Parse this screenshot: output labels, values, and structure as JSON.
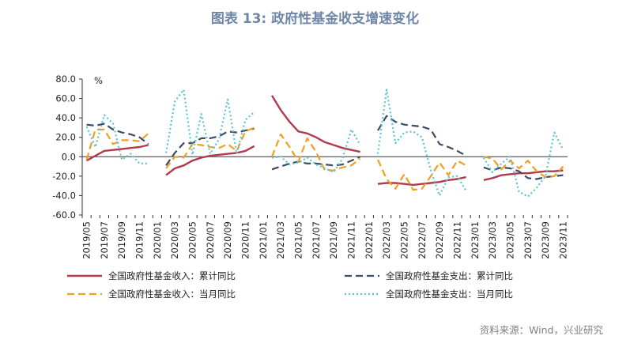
{
  "title": "图表 13: 政府性基金收支增速变化",
  "source": "资料来源：Wind，兴业研究",
  "chart_data": {
    "type": "line",
    "y_unit": "%",
    "ylim": [
      -60,
      80
    ],
    "yticks": [
      "80.0",
      "60.0",
      "40.0",
      "20.0",
      "0.0",
      "-20.0",
      "-40.0",
      "-60.0"
    ],
    "x": [
      "2019/05",
      "2019/06",
      "2019/07",
      "2019/08",
      "2019/09",
      "2019/10",
      "2019/11",
      "2019/12",
      "2020/01",
      "2020/02",
      "2020/03",
      "2020/04",
      "2020/05",
      "2020/06",
      "2020/07",
      "2020/08",
      "2020/09",
      "2020/10",
      "2020/11",
      "2020/12",
      "2021/01",
      "2021/02",
      "2021/03",
      "2021/04",
      "2021/05",
      "2021/06",
      "2021/07",
      "2021/08",
      "2021/09",
      "2021/10",
      "2021/11",
      "2021/12",
      "2022/01",
      "2022/02",
      "2022/03",
      "2022/04",
      "2022/05",
      "2022/06",
      "2022/07",
      "2022/08",
      "2022/09",
      "2022/10",
      "2022/11",
      "2022/12",
      "2023/01",
      "2023/02",
      "2023/03",
      "2023/04",
      "2023/05",
      "2023/06",
      "2023/07",
      "2023/08",
      "2023/09",
      "2023/10",
      "2023/11"
    ],
    "xtick_labels": [
      "2019/05",
      "2019/07",
      "2019/09",
      "2019/11",
      "2020/01",
      "2020/03",
      "2020/05",
      "2020/07",
      "2020/09",
      "2020/11",
      "2021/01",
      "2021/03",
      "2021/05",
      "2021/07",
      "2021/09",
      "2021/11",
      "2022/01",
      "2022/03",
      "2022/05",
      "2022/07",
      "2022/09",
      "2022/11",
      "2023/01",
      "2023/03",
      "2023/05",
      "2023/07",
      "2023/09",
      "2023/11"
    ],
    "grid": false,
    "legend_position": "bottom",
    "series": [
      {
        "name": "全国政府性基金收入：累计同比",
        "color": "#b23a4f",
        "style": "solid",
        "values": [
          -4,
          1,
          6,
          7,
          8,
          9,
          10,
          12,
          null,
          -19,
          -12,
          -9,
          -4,
          -1,
          1,
          2,
          3,
          4,
          6,
          11,
          null,
          63,
          48,
          36,
          26,
          24,
          20,
          15,
          12,
          9,
          7,
          5,
          null,
          -28,
          -27,
          -27,
          -28,
          -29,
          -28,
          -27,
          -26,
          -24,
          -23,
          -21,
          null,
          -24,
          -22,
          -19,
          -18,
          -17,
          -17,
          -16,
          -15,
          -15,
          -14
        ]
      },
      {
        "name": "全国政府性基金支出：累计同比",
        "color": "#3b4d66",
        "style": "dash",
        "values": [
          33,
          32,
          34,
          28,
          25,
          23,
          20,
          13,
          null,
          -9,
          4,
          14,
          14,
          19,
          19,
          21,
          26,
          25,
          27,
          29,
          null,
          -13,
          -10,
          -7,
          -5,
          -7,
          -7,
          -8,
          -9,
          -8,
          -4,
          0,
          null,
          27,
          42,
          36,
          33,
          32,
          31,
          28,
          13,
          10,
          6,
          1,
          null,
          -11,
          -14,
          -11,
          -12,
          -15,
          -22,
          -23,
          -21,
          -20,
          -19
        ]
      },
      {
        "name": "全国政府性基金收入：当月同比",
        "color": "#f0a020",
        "style": "dash",
        "values": [
          -3,
          28,
          28,
          13,
          17,
          17,
          16,
          24,
          null,
          -12,
          0,
          -1,
          13,
          12,
          10,
          9,
          13,
          6,
          26,
          30,
          null,
          0,
          23,
          10,
          -5,
          19,
          5,
          -14,
          -14,
          -11,
          -9,
          -2,
          null,
          -3,
          -23,
          -33,
          -18,
          -34,
          -33,
          -20,
          -6,
          -19,
          -4,
          -9,
          null,
          0,
          -2,
          -13,
          -4,
          -12,
          -4,
          -15,
          -21,
          -20,
          -10
        ]
      },
      {
        "name": "全国政府性基金支出：当月同比",
        "color": "#5cc4d3",
        "style": "dot",
        "values": [
          31,
          10,
          43,
          34,
          -3,
          3,
          -7,
          -7,
          null,
          4,
          57,
          69,
          2,
          44,
          3,
          18,
          59,
          3,
          38,
          46,
          null,
          -1,
          0,
          -8,
          -6,
          -1,
          -8,
          -12,
          -16,
          -2,
          28,
          12,
          null,
          3,
          69,
          14,
          25,
          26,
          20,
          -14,
          -40,
          -21,
          -20,
          -35,
          null,
          -1,
          -16,
          -7,
          0,
          -36,
          -41,
          -32,
          -20,
          25,
          7
        ]
      }
    ]
  }
}
